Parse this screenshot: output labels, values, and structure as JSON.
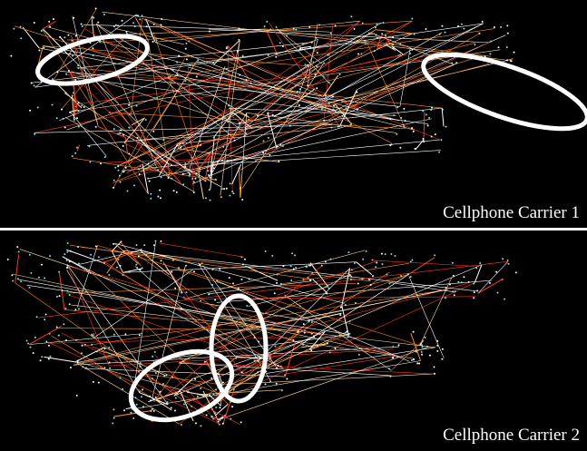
{
  "panels": [
    {
      "label": "Cellphone Carrier 1"
    },
    {
      "label": "Cellphone Carrier 2"
    }
  ]
}
